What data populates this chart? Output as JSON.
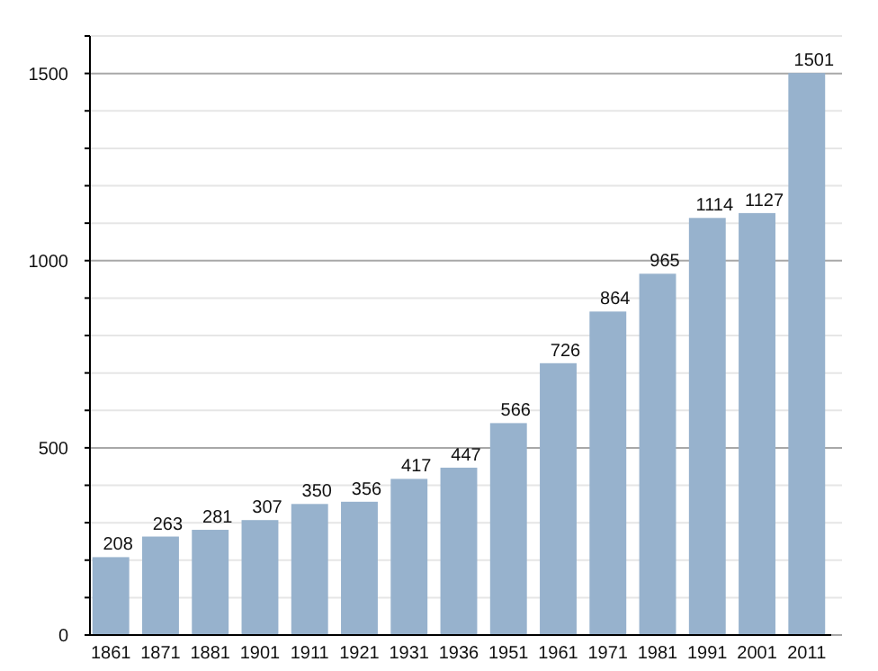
{
  "chart_data": {
    "type": "bar",
    "categories": [
      "1861",
      "1871",
      "1881",
      "1901",
      "1911",
      "1921",
      "1931",
      "1936",
      "1951",
      "1961",
      "1971",
      "1981",
      "1991",
      "2001",
      "2011"
    ],
    "values": [
      208,
      263,
      281,
      307,
      350,
      356,
      417,
      447,
      566,
      726,
      864,
      965,
      1114,
      1127,
      1501
    ],
    "color": "#97b2cd",
    "ylim": [
      0,
      1600
    ],
    "yticks": [
      0,
      {
        "value": 100,
        "label": null
      },
      {
        "value": 200,
        "label": null
      },
      {
        "value": 300,
        "label": null
      },
      {
        "value": 400,
        "label": null
      },
      500,
      {
        "value": 600,
        "label": null
      },
      {
        "value": 700,
        "label": null
      },
      {
        "value": 800,
        "label": null
      },
      {
        "value": 900,
        "label": null
      },
      1000,
      {
        "value": 1100,
        "label": null
      },
      {
        "value": 1200,
        "label": null
      },
      {
        "value": 1300,
        "label": null
      },
      {
        "value": 1400,
        "label": null
      },
      1500,
      {
        "value": 1600,
        "label": null
      }
    ],
    "grid": true,
    "data_labels": true
  }
}
